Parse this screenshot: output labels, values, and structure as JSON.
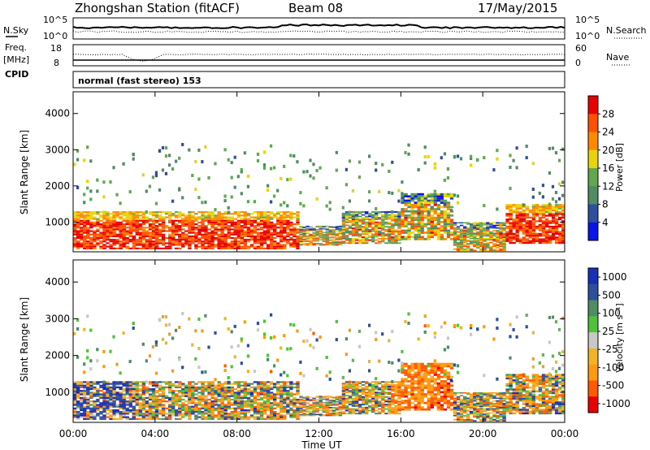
{
  "header": {
    "title": "Zhongshan Station (fitACF)",
    "beam": "Beam 08",
    "date": "17/May/2015"
  },
  "noise_panel": {
    "left_label": "N.Sky",
    "left_ticks": [
      "10^5",
      "10^0"
    ],
    "right_ticks": [
      "10^5",
      "10^0"
    ],
    "right_label": "N.Search"
  },
  "freq_panel": {
    "left_label": "Freq.",
    "unit_label": "[MHz]",
    "left_ticks": [
      "18",
      "8"
    ],
    "right_ticks": [
      "60",
      "0"
    ],
    "right_label": "Nave",
    "cpid_label": "CPID"
  },
  "cpid_text": "normal (fast stereo) 153",
  "colors": {
    "power_scale": [
      "#0a14e6",
      "#2f4ea0",
      "#4f8c64",
      "#5fa84e",
      "#e8d40c",
      "#ff8a00",
      "#ff5200",
      "#e80000"
    ],
    "velocity_scale": [
      "#e80000",
      "#ff5a00",
      "#ff9a10",
      "#f0b429",
      "#c8c8c8",
      "#4fc23a",
      "#4f8c64",
      "#2f4ea0",
      "#1a2fb4"
    ]
  },
  "chart_data": [
    {
      "type": "heatmap",
      "panel": "power",
      "ylabel": "Slant Range [km]",
      "y_ticks": [
        "1000",
        "2000",
        "3000",
        "4000"
      ],
      "ylim": [
        180,
        4600
      ],
      "xlim": [
        "00:00",
        "00:00"
      ],
      "colorbar": {
        "label": "Power [dB]",
        "ticks": [
          "28",
          "24",
          "20",
          "16",
          "12",
          "8",
          "4"
        ],
        "range": [
          0,
          32
        ]
      }
    },
    {
      "type": "heatmap",
      "panel": "velocity",
      "ylabel": "Slant Range [km]",
      "y_ticks": [
        "1000",
        "2000",
        "3000",
        "4000"
      ],
      "ylim": [
        180,
        4600
      ],
      "colorbar": {
        "label": "Velocity [m s⁻¹]",
        "ticks": [
          "1000",
          "500",
          "100",
          "25",
          "-25",
          "-100",
          "-500",
          "-1000"
        ]
      }
    }
  ],
  "time_axis": {
    "ticks": [
      "00:00",
      "04:00",
      "08:00",
      "12:00",
      "16:00",
      "20:00",
      "00:00"
    ],
    "label": "Time UT"
  }
}
